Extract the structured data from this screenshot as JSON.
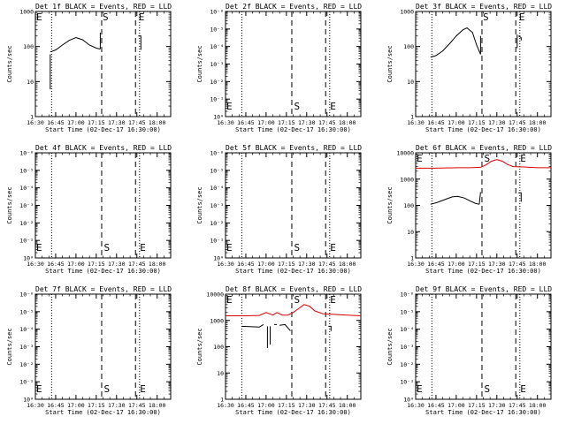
{
  "figure": {
    "type": "multi-panel time series",
    "ylabel": "Counts/sec",
    "xlabel": "Start Time (02-Dec-17 16:30:00)",
    "x_ticks": [
      "16:30",
      "16:45",
      "17:00",
      "17:15",
      "17:30",
      "17:45",
      "18:00"
    ],
    "markers": {
      "start": "S",
      "end": "E"
    },
    "colors": {
      "events": "#000000",
      "lld": "#dd0000",
      "axes": "#000000",
      "background": "#ffffff"
    }
  },
  "chart_data": [
    {
      "type": "line",
      "title": "Det 1f BLACK = Events, RED = LLD",
      "xlabel": "Start Time (02-Dec-17 16:30:00)",
      "ylabel": "Counts/sec",
      "xlim": [
        "16:30",
        "18:10"
      ],
      "ylog": true,
      "ylim": [
        1,
        1000
      ],
      "y_ticks": [
        "1",
        "10",
        "100",
        "1000"
      ],
      "dotted_lines": [
        "16:42",
        "17:47"
      ],
      "dashed_lines": [
        "17:19",
        "17:44"
      ],
      "S_label_at": "17:19",
      "E_label_at": "17:45",
      "E_left": true,
      "series": [
        {
          "color": "#000000",
          "segments": [
            [
              [
                "16:41",
                6
              ],
              [
                "16:41",
                60
              ]
            ],
            [
              [
                "16:41",
                70
              ],
              [
                "16:45",
                80
              ],
              [
                "16:50",
                110
              ],
              [
                "16:55",
                150
              ],
              [
                "17:00",
                180
              ],
              [
                "17:05",
                155
              ],
              [
                "17:10",
                110
              ],
              [
                "17:15",
                90
              ],
              [
                "17:18",
                85
              ]
            ],
            [
              [
                "17:18",
                85
              ],
              [
                "17:18",
                250
              ]
            ],
            [
              [
                "17:46",
                200
              ],
              [
                "17:48",
                200
              ],
              [
                "17:48",
                80
              ]
            ]
          ]
        }
      ]
    },
    {
      "type": "line",
      "title": "Det 2f BLACK = Events, RED = LLD",
      "xlabel": "Start Time (02-Dec-17 16:30:00)",
      "ylabel": "Counts/sec",
      "xlim": [
        "16:30",
        "18:10"
      ],
      "ylog": true,
      "ylim": [
        1,
        1000000
      ],
      "y_ticks": [
        "10⁰",
        "10⁻¹",
        "10⁻²",
        "10⁻³",
        "10⁻⁴",
        "10⁻⁵",
        "10⁻⁶"
      ],
      "dotted_lines": [
        "16:42",
        "17:47"
      ],
      "dashed_lines": [
        "17:19",
        "17:44"
      ],
      "S_label_at": "17:20",
      "E_label_at": "17:46",
      "E_left": true,
      "series": []
    },
    {
      "type": "line",
      "title": "Det 3f BLACK = Events, RED = LLD",
      "xlabel": "Start Time (02-Dec-17 16:30:00)",
      "ylabel": "Counts/sec",
      "xlim": [
        "16:30",
        "18:10"
      ],
      "ylog": true,
      "ylim": [
        1,
        1000
      ],
      "y_ticks": [
        "1",
        "10",
        "100",
        "1000"
      ],
      "dotted_lines": [
        "16:42",
        "17:47"
      ],
      "dashed_lines": [
        "17:19",
        "17:44"
      ],
      "S_label_at": "17:19",
      "E_label_at": "17:45",
      "E_left": false,
      "series": [
        {
          "color": "#000000",
          "segments": [
            [
              [
                "16:41",
                50
              ],
              [
                "16:45",
                55
              ],
              [
                "16:50",
                75
              ],
              [
                "16:55",
                120
              ],
              [
                "17:00",
                200
              ],
              [
                "17:05",
                300
              ],
              [
                "17:08",
                340
              ],
              [
                "17:12",
                250
              ],
              [
                "17:15",
                110
              ],
              [
                "17:18",
                60
              ]
            ],
            [
              [
                "17:18",
                60
              ],
              [
                "17:18",
                200
              ]
            ],
            [
              [
                "17:45",
                90
              ],
              [
                "17:45",
                220
              ]
            ],
            [
              [
                "17:46",
                200
              ],
              [
                "17:48",
                180
              ],
              [
                "17:48",
                150
              ]
            ]
          ]
        }
      ]
    },
    {
      "type": "line",
      "title": "Det 4f BLACK = Events, RED = LLD",
      "xlabel": "Start Time (02-Dec-17 16:30:00)",
      "ylabel": "Counts/sec",
      "xlim": [
        "16:30",
        "18:10"
      ],
      "ylog": true,
      "ylim": [
        1,
        1000000
      ],
      "y_ticks": [
        "10⁰",
        "10⁻¹",
        "10⁻²",
        "10⁻³",
        "10⁻⁴",
        "10⁻⁵",
        "10⁻⁶"
      ],
      "dotted_lines": [
        "16:42",
        "17:47"
      ],
      "dashed_lines": [
        "17:19",
        "17:44"
      ],
      "S_label_at": "17:20",
      "E_label_at": "17:46",
      "E_left": true,
      "series": []
    },
    {
      "type": "line",
      "title": "Det 5f BLACK = Events, RED = LLD",
      "xlabel": "Start Time (02-Dec-17 16:30:00)",
      "ylabel": "Counts/sec",
      "xlim": [
        "16:30",
        "18:10"
      ],
      "ylog": true,
      "ylim": [
        1,
        1000000
      ],
      "y_ticks": [
        "10⁰",
        "10⁻¹",
        "10⁻²",
        "10⁻³",
        "10⁻⁴",
        "10⁻⁵",
        "10⁻⁶"
      ],
      "dotted_lines": [
        "16:42",
        "17:47"
      ],
      "dashed_lines": [
        "17:19",
        "17:44"
      ],
      "S_label_at": "17:20",
      "E_label_at": "17:46",
      "E_left": true,
      "series": []
    },
    {
      "type": "line",
      "title": "Det 6f BLACK = Events, RED = LLD",
      "xlabel": "Start Time (02-Dec-17 16:30:00)",
      "ylabel": "Counts/sec",
      "xlim": [
        "16:30",
        "18:10"
      ],
      "ylog": true,
      "ylim": [
        1,
        10000
      ],
      "y_ticks": [
        "1",
        "10",
        "100",
        "1000",
        "10000"
      ],
      "dotted_lines": [
        "16:42",
        "17:47"
      ],
      "dashed_lines": [
        "17:19",
        "17:44"
      ],
      "S_label_at": "17:20",
      "E_label_at": "17:46",
      "E_left": true,
      "series": [
        {
          "color": "#dd0000",
          "segments": [
            [
              [
                "16:30",
                2600
              ],
              [
                "16:45",
                2600
              ],
              [
                "17:00",
                2700
              ],
              [
                "17:10",
                2700
              ],
              [
                "17:18",
                2800
              ],
              [
                "17:22",
                3500
              ],
              [
                "17:26",
                4800
              ],
              [
                "17:30",
                5500
              ],
              [
                "17:34",
                4800
              ],
              [
                "17:38",
                3600
              ],
              [
                "17:42",
                3000
              ],
              [
                "17:50",
                2900
              ],
              [
                "18:00",
                2700
              ],
              [
                "18:10",
                2700
              ]
            ]
          ]
        },
        {
          "color": "#000000",
          "segments": [
            [
              [
                "16:41",
                110
              ],
              [
                "16:46",
                130
              ],
              [
                "16:52",
                170
              ],
              [
                "16:57",
                210
              ],
              [
                "17:01",
                220
              ],
              [
                "17:06",
                190
              ],
              [
                "17:10",
                150
              ],
              [
                "17:14",
                120
              ],
              [
                "17:17",
                110
              ]
            ],
            [
              [
                "17:17",
                110
              ],
              [
                "17:18",
                320
              ]
            ],
            [
              [
                "17:46",
                300
              ],
              [
                "17:48",
                300
              ],
              [
                "17:48",
                140
              ]
            ]
          ]
        }
      ]
    },
    {
      "type": "line",
      "title": "Det 7f BLACK = Events, RED = LLD",
      "xlabel": "Start Time (02-Dec-17 16:30:00)",
      "ylabel": "Counts/sec",
      "xlim": [
        "16:30",
        "18:10"
      ],
      "ylog": true,
      "ylim": [
        1,
        1000000
      ],
      "y_ticks": [
        "10⁰",
        "10⁻¹",
        "10⁻²",
        "10⁻³",
        "10⁻⁴",
        "10⁻⁵",
        "10⁻⁶"
      ],
      "dotted_lines": [
        "16:42",
        "17:47"
      ],
      "dashed_lines": [
        "17:19",
        "17:44"
      ],
      "S_label_at": "17:20",
      "E_label_at": "17:46",
      "E_left": true,
      "series": []
    },
    {
      "type": "line",
      "title": "Det 8f BLACK = Events, RED = LLD",
      "xlabel": "Start Time (02-Dec-17 16:30:00)",
      "ylabel": "Counts/sec",
      "xlim": [
        "16:30",
        "18:10"
      ],
      "ylog": true,
      "ylim": [
        1,
        10000
      ],
      "y_ticks": [
        "1",
        "10",
        "100",
        "1000",
        "10000"
      ],
      "dotted_lines": [
        "16:42",
        "17:47"
      ],
      "dashed_lines": [
        "17:19",
        "17:44"
      ],
      "S_label_at": "17:20",
      "E_label_at": "17:46",
      "E_left": true,
      "series": [
        {
          "color": "#dd0000",
          "segments": [
            [
              [
                "16:30",
                1500
              ],
              [
                "16:45",
                1500
              ],
              [
                "16:55",
                1550
              ],
              [
                "17:00",
                2000
              ],
              [
                "17:05",
                1600
              ],
              [
                "17:08",
                2000
              ],
              [
                "17:12",
                1600
              ],
              [
                "17:16",
                1600
              ],
              [
                "17:20",
                2000
              ],
              [
                "17:24",
                2800
              ],
              [
                "17:28",
                4000
              ],
              [
                "17:32",
                3500
              ],
              [
                "17:36",
                2300
              ],
              [
                "17:42",
                1800
              ],
              [
                "17:50",
                1700
              ],
              [
                "18:00",
                1600
              ],
              [
                "18:10",
                1500
              ]
            ]
          ]
        },
        {
          "color": "#000000",
          "segments": [
            [
              [
                "16:42",
                600
              ],
              [
                "16:55",
                560
              ],
              [
                "16:58",
                700
              ]
            ],
            [
              [
                "17:01",
                90
              ],
              [
                "17:01",
                600
              ]
            ],
            [
              [
                "17:03",
                120
              ],
              [
                "17:03",
                600
              ]
            ],
            [
              [
                "17:06",
                700
              ],
              [
                "17:08",
                700
              ]
            ],
            [
              [
                "17:10",
                650
              ],
              [
                "17:14",
                700
              ],
              [
                "17:18",
                400
              ]
            ],
            [
              [
                "17:46",
                600
              ],
              [
                "17:48",
                600
              ],
              [
                "17:48",
                400
              ]
            ]
          ]
        }
      ]
    },
    {
      "type": "line",
      "title": "Det 9f BLACK = Events, RED = LLD",
      "xlabel": "Start Time (02-Dec-17 16:30:00)",
      "ylabel": "Counts/sec",
      "xlim": [
        "16:30",
        "18:10"
      ],
      "ylog": true,
      "ylim": [
        1,
        1000000
      ],
      "y_ticks": [
        "10⁰",
        "10⁻¹",
        "10⁻²",
        "10⁻³",
        "10⁻⁴",
        "10⁻⁵",
        "10⁻⁶"
      ],
      "dotted_lines": [
        "16:42",
        "17:47"
      ],
      "dashed_lines": [
        "17:19",
        "17:44"
      ],
      "S_label_at": "17:20",
      "E_label_at": "17:46",
      "E_left": true,
      "series": []
    }
  ]
}
